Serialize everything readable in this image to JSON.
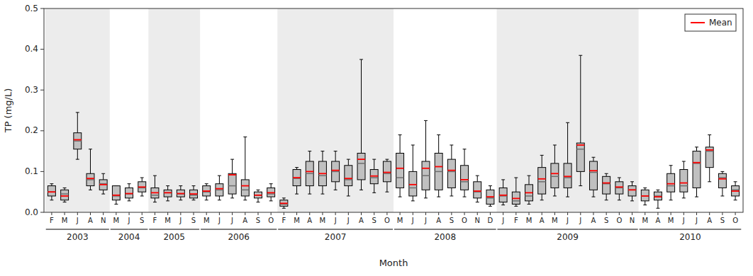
{
  "chart_data": {
    "type": "box",
    "xlabel": "Month",
    "ylabel": "TP (mg/L)",
    "color": "#c0c0c0",
    "ylim": [
      0,
      0.5
    ],
    "yticks": [
      {
        "value": 0,
        "label": "0.0"
      },
      0.1,
      0.2,
      0.3,
      0.4,
      0.5
    ],
    "grid": false,
    "legend": "upper right",
    "categories": [
      "F",
      "M",
      "J",
      "A",
      "N",
      "M",
      "J",
      "S",
      "F",
      "M",
      "J",
      "S",
      "M",
      "J",
      "J",
      "A",
      "S",
      "O",
      "F",
      "M",
      "A",
      "M",
      "J",
      "J",
      "A",
      "S",
      "O",
      "M",
      "J",
      "J",
      "A",
      "S",
      "O",
      "N",
      "D",
      "J",
      "F",
      "M",
      "A",
      "M",
      "J",
      "J",
      "A",
      "S",
      "O",
      "N",
      "M",
      "A",
      "M",
      "J",
      "J",
      "A",
      "S",
      "O"
    ],
    "groups": [
      {
        "label": "2003",
        "start": 0,
        "end": 4
      },
      {
        "label": "2004",
        "start": 5,
        "end": 7
      },
      {
        "label": "2005",
        "start": 8,
        "end": 11
      },
      {
        "label": "2006",
        "start": 12,
        "end": 17
      },
      {
        "label": "2007",
        "start": 18,
        "end": 26
      },
      {
        "label": "2008",
        "start": 27,
        "end": 34
      },
      {
        "label": "2009",
        "start": 35,
        "end": 45
      },
      {
        "label": "2010",
        "start": 46,
        "end": 53
      }
    ],
    "boxes": [
      {
        "q1": 0.04,
        "median": 0.05,
        "q3": 0.065,
        "whislo": 0.03,
        "whishi": 0.07
      },
      {
        "q1": 0.03,
        "median": 0.045,
        "q3": 0.055,
        "whislo": 0.025,
        "whishi": 0.06
      },
      {
        "q1": 0.155,
        "median": 0.175,
        "q3": 0.195,
        "whislo": 0.13,
        "whishi": 0.245
      },
      {
        "q1": 0.065,
        "median": 0.08,
        "q3": 0.095,
        "whislo": 0.055,
        "whishi": 0.155
      },
      {
        "q1": 0.055,
        "median": 0.07,
        "q3": 0.08,
        "whislo": 0.045,
        "whishi": 0.095
      },
      {
        "q1": 0.03,
        "median": 0.04,
        "q3": 0.065,
        "whislo": 0.02,
        "whishi": 0.065
      },
      {
        "q1": 0.035,
        "median": 0.045,
        "q3": 0.06,
        "whislo": 0.028,
        "whishi": 0.07
      },
      {
        "q1": 0.05,
        "median": 0.06,
        "q3": 0.075,
        "whislo": 0.04,
        "whishi": 0.085
      },
      {
        "q1": 0.035,
        "median": 0.042,
        "q3": 0.06,
        "whislo": 0.025,
        "whishi": 0.09
      },
      {
        "q1": 0.038,
        "median": 0.048,
        "q3": 0.055,
        "whislo": 0.028,
        "whishi": 0.065
      },
      {
        "q1": 0.038,
        "median": 0.045,
        "q3": 0.055,
        "whislo": 0.03,
        "whishi": 0.065
      },
      {
        "q1": 0.035,
        "median": 0.042,
        "q3": 0.055,
        "whislo": 0.03,
        "whishi": 0.065
      },
      {
        "q1": 0.04,
        "median": 0.05,
        "q3": 0.065,
        "whislo": 0.03,
        "whishi": 0.07
      },
      {
        "q1": 0.04,
        "median": 0.055,
        "q3": 0.07,
        "whislo": 0.03,
        "whishi": 0.09
      },
      {
        "q1": 0.045,
        "median": 0.065,
        "q3": 0.095,
        "whislo": 0.035,
        "whishi": 0.13
      },
      {
        "q1": 0.04,
        "median": 0.055,
        "q3": 0.08,
        "whislo": 0.03,
        "whishi": 0.185
      },
      {
        "q1": 0.035,
        "median": 0.042,
        "q3": 0.05,
        "whislo": 0.025,
        "whishi": 0.055
      },
      {
        "q1": 0.038,
        "median": 0.045,
        "q3": 0.06,
        "whislo": 0.028,
        "whishi": 0.07
      },
      {
        "q1": 0.015,
        "median": 0.02,
        "q3": 0.03,
        "whislo": 0.01,
        "whishi": 0.035
      },
      {
        "q1": 0.065,
        "median": 0.083,
        "q3": 0.105,
        "whislo": 0.045,
        "whishi": 0.11
      },
      {
        "q1": 0.065,
        "median": 0.095,
        "q3": 0.125,
        "whislo": 0.045,
        "whishi": 0.15
      },
      {
        "q1": 0.065,
        "median": 0.09,
        "q3": 0.125,
        "whislo": 0.045,
        "whishi": 0.15
      },
      {
        "q1": 0.075,
        "median": 0.1,
        "q3": 0.125,
        "whislo": 0.055,
        "whishi": 0.15
      },
      {
        "q1": 0.065,
        "median": 0.08,
        "q3": 0.115,
        "whislo": 0.04,
        "whishi": 0.13
      },
      {
        "q1": 0.08,
        "median": 0.12,
        "q3": 0.145,
        "whislo": 0.055,
        "whishi": 0.375
      },
      {
        "q1": 0.07,
        "median": 0.085,
        "q3": 0.105,
        "whislo": 0.048,
        "whishi": 0.13
      },
      {
        "q1": 0.075,
        "median": 0.095,
        "q3": 0.125,
        "whislo": 0.05,
        "whishi": 0.13
      },
      {
        "q1": 0.06,
        "median": 0.085,
        "q3": 0.145,
        "whislo": 0.038,
        "whishi": 0.19
      },
      {
        "q1": 0.04,
        "median": 0.06,
        "q3": 0.1,
        "whislo": 0.028,
        "whishi": 0.165
      },
      {
        "q1": 0.055,
        "median": 0.09,
        "q3": 0.125,
        "whislo": 0.035,
        "whishi": 0.225
      },
      {
        "q1": 0.055,
        "median": 0.1,
        "q3": 0.145,
        "whislo": 0.038,
        "whishi": 0.19
      },
      {
        "q1": 0.06,
        "median": 0.1,
        "q3": 0.13,
        "whislo": 0.04,
        "whishi": 0.165
      },
      {
        "q1": 0.055,
        "median": 0.075,
        "q3": 0.115,
        "whislo": 0.038,
        "whishi": 0.155
      },
      {
        "q1": 0.035,
        "median": 0.05,
        "q3": 0.075,
        "whislo": 0.025,
        "whishi": 0.09
      },
      {
        "q1": 0.02,
        "median": 0.035,
        "q3": 0.055,
        "whislo": 0.015,
        "whishi": 0.065
      },
      {
        "q1": 0.025,
        "median": 0.04,
        "q3": 0.06,
        "whislo": 0.018,
        "whishi": 0.08
      },
      {
        "q1": 0.02,
        "median": 0.028,
        "q3": 0.05,
        "whislo": 0.015,
        "whishi": 0.085
      },
      {
        "q1": 0.028,
        "median": 0.04,
        "q3": 0.068,
        "whislo": 0.02,
        "whishi": 0.09
      },
      {
        "q1": 0.045,
        "median": 0.075,
        "q3": 0.11,
        "whislo": 0.03,
        "whishi": 0.14
      },
      {
        "q1": 0.06,
        "median": 0.088,
        "q3": 0.12,
        "whislo": 0.04,
        "whishi": 0.165
      },
      {
        "q1": 0.06,
        "median": 0.085,
        "q3": 0.12,
        "whislo": 0.038,
        "whishi": 0.22
      },
      {
        "q1": 0.1,
        "median": 0.155,
        "q3": 0.17,
        "whislo": 0.065,
        "whishi": 0.385
      },
      {
        "q1": 0.055,
        "median": 0.098,
        "q3": 0.125,
        "whislo": 0.038,
        "whishi": 0.135
      },
      {
        "q1": 0.045,
        "median": 0.07,
        "q3": 0.088,
        "whislo": 0.03,
        "whishi": 0.095
      },
      {
        "q1": 0.045,
        "median": 0.06,
        "q3": 0.075,
        "whislo": 0.03,
        "whishi": 0.085
      },
      {
        "q1": 0.04,
        "median": 0.055,
        "q3": 0.065,
        "whislo": 0.028,
        "whishi": 0.075
      },
      {
        "q1": 0.028,
        "median": 0.04,
        "q3": 0.055,
        "whislo": 0.018,
        "whishi": 0.06
      },
      {
        "q1": 0.03,
        "median": 0.04,
        "q3": 0.05,
        "whislo": 0.01,
        "whishi": 0.055
      },
      {
        "q1": 0.05,
        "median": 0.065,
        "q3": 0.095,
        "whislo": 0.03,
        "whishi": 0.115
      },
      {
        "q1": 0.05,
        "median": 0.065,
        "q3": 0.105,
        "whislo": 0.035,
        "whishi": 0.125
      },
      {
        "q1": 0.06,
        "median": 0.12,
        "q3": 0.15,
        "whislo": 0.038,
        "whishi": 0.16
      },
      {
        "q1": 0.11,
        "median": 0.15,
        "q3": 0.16,
        "whislo": 0.075,
        "whishi": 0.19
      },
      {
        "q1": 0.06,
        "median": 0.085,
        "q3": 0.095,
        "whislo": 0.04,
        "whishi": 0.1
      },
      {
        "q1": 0.04,
        "median": 0.055,
        "q3": 0.065,
        "whislo": 0.03,
        "whishi": 0.075
      }
    ],
    "series": [
      {
        "name": "Mean",
        "color": "#ff0000",
        "values": [
          0.05,
          0.04,
          0.178,
          0.083,
          0.068,
          0.042,
          0.046,
          0.062,
          0.048,
          0.048,
          0.046,
          0.045,
          0.052,
          0.058,
          0.092,
          0.065,
          0.042,
          0.048,
          0.022,
          0.085,
          0.1,
          0.095,
          0.103,
          0.083,
          0.13,
          0.089,
          0.098,
          0.108,
          0.068,
          0.108,
          0.112,
          0.103,
          0.08,
          0.052,
          0.038,
          0.042,
          0.034,
          0.048,
          0.082,
          0.095,
          0.088,
          0.165,
          0.102,
          0.072,
          0.062,
          0.055,
          0.04,
          0.038,
          0.07,
          0.072,
          0.122,
          0.153,
          0.082,
          0.052
        ]
      }
    ]
  }
}
